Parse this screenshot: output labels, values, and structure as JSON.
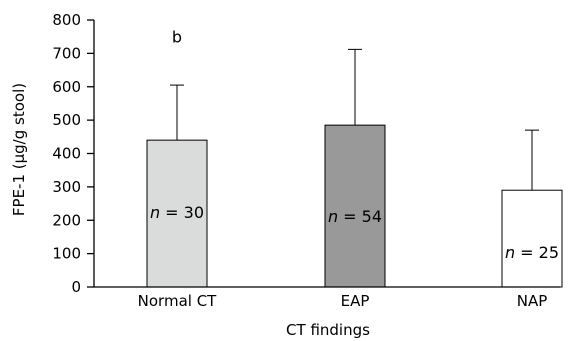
{
  "chart_data": {
    "type": "bar",
    "categories": [
      "Normal CT",
      "EAP",
      "NAP"
    ],
    "values": [
      440,
      485,
      290
    ],
    "error_upper": [
      605,
      712,
      470
    ],
    "bar_colors": [
      "#dadcdb",
      "#999999",
      "#ffffff"
    ],
    "n_labels": [
      "n = 30",
      "n = 54",
      "n = 25"
    ],
    "n_label_y": [
      225,
      213,
      105
    ],
    "annotations": [
      {
        "category": "Normal CT",
        "text": "b",
        "y": 750
      }
    ],
    "xlabel": "CT findings",
    "ylabel": "FPE-1 (μg/g stool)",
    "ylim": [
      0,
      800
    ],
    "yticks": [
      0,
      100,
      200,
      300,
      400,
      500,
      600,
      700,
      800
    ],
    "grid": false
  }
}
